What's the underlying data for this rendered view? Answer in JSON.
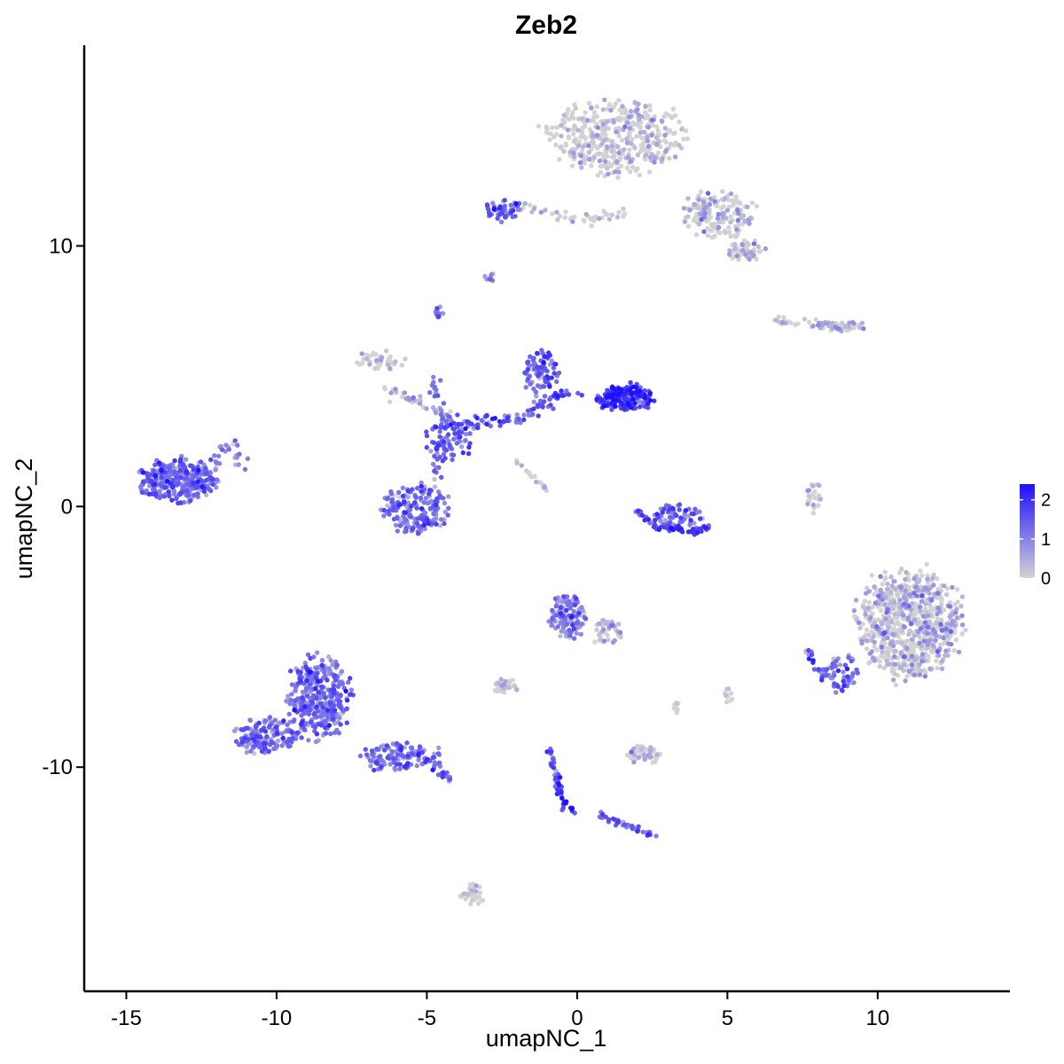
{
  "chart_data": {
    "type": "scatter",
    "title": "Zeb2",
    "xlabel": "umapNC_1",
    "ylabel": "umapNC_2",
    "xlim": [
      -16.4,
      14.4
    ],
    "ylim": [
      -18.6,
      17.7
    ],
    "x_ticks": [
      -15,
      -10,
      -5,
      0,
      5,
      10
    ],
    "x_tick_labels": [
      "-15",
      "-10",
      "-5",
      "0",
      "5",
      "10"
    ],
    "y_ticks": [
      -10,
      0,
      10
    ],
    "y_tick_labels": [
      "-10",
      "0",
      "10"
    ],
    "grid": false,
    "legend_position": "right",
    "color_scale": {
      "low_color": "#d3d3d3",
      "high_color": "#1e0fff",
      "min": 0,
      "max": 2.4,
      "ticks": [
        0,
        1,
        2
      ],
      "tick_labels": [
        "0",
        "1",
        "2"
      ]
    },
    "clusters": [
      {
        "cx": 1.2,
        "cy": 14.2,
        "rx": 2.5,
        "ry": 1.6,
        "n": 420,
        "expr": 0.15
      },
      {
        "cx": 4.7,
        "cy": 11.2,
        "rx": 1.3,
        "ry": 1.0,
        "n": 160,
        "expr": 0.3
      },
      {
        "cx": 5.6,
        "cy": 9.8,
        "rx": 0.7,
        "ry": 0.5,
        "n": 60,
        "expr": 0.2
      },
      {
        "cx": -2.4,
        "cy": 11.4,
        "rx": 0.7,
        "ry": 0.5,
        "n": 50,
        "expr": 1.3
      },
      {
        "cx": -2.9,
        "cy": 8.8,
        "rx": 0.2,
        "ry": 0.2,
        "n": 8,
        "expr": 1.3
      },
      {
        "cx": -4.6,
        "cy": 7.4,
        "rx": 0.2,
        "ry": 0.3,
        "n": 10,
        "expr": 1.2
      },
      {
        "cx": -6.6,
        "cy": 5.6,
        "rx": 0.9,
        "ry": 0.5,
        "n": 40,
        "expr": 0.1
      },
      {
        "cx": -13.3,
        "cy": 1.0,
        "rx": 1.4,
        "ry": 0.9,
        "n": 340,
        "expr": 1.2
      },
      {
        "cx": -5.4,
        "cy": -0.1,
        "rx": 1.2,
        "ry": 1.1,
        "n": 180,
        "expr": 1.2
      },
      {
        "cx": -4.2,
        "cy": 2.6,
        "rx": 0.9,
        "ry": 1.0,
        "n": 80,
        "expr": 1.3
      },
      {
        "cx": -1.2,
        "cy": 5.2,
        "rx": 0.7,
        "ry": 0.9,
        "n": 80,
        "expr": 1.4
      },
      {
        "cx": 1.6,
        "cy": 4.2,
        "rx": 1.0,
        "ry": 0.6,
        "n": 180,
        "expr": 1.8
      },
      {
        "cx": 3.3,
        "cy": -0.4,
        "rx": 0.9,
        "ry": 0.6,
        "n": 60,
        "expr": 1.3
      },
      {
        "cx": 8.6,
        "cy": 6.9,
        "rx": 1.0,
        "ry": 0.2,
        "n": 30,
        "expr": 0.5
      },
      {
        "cx": 11.1,
        "cy": -4.5,
        "rx": 1.9,
        "ry": 2.4,
        "n": 720,
        "expr": 0.45
      },
      {
        "cx": 8.9,
        "cy": -6.3,
        "rx": 0.6,
        "ry": 0.7,
        "n": 40,
        "expr": 1.0
      },
      {
        "cx": -10.3,
        "cy": -8.8,
        "rx": 1.2,
        "ry": 0.8,
        "n": 150,
        "expr": 1.1
      },
      {
        "cx": -8.6,
        "cy": -7.3,
        "rx": 1.2,
        "ry": 1.7,
        "n": 360,
        "expr": 1.1
      },
      {
        "cx": -6.0,
        "cy": -9.6,
        "rx": 1.6,
        "ry": 0.6,
        "n": 120,
        "expr": 1.1
      },
      {
        "cx": -0.3,
        "cy": -4.2,
        "rx": 0.7,
        "ry": 0.9,
        "n": 130,
        "expr": 0.9
      },
      {
        "cx": 1.0,
        "cy": -4.8,
        "rx": 0.6,
        "ry": 0.6,
        "n": 40,
        "expr": 0.4
      },
      {
        "cx": -2.4,
        "cy": -6.9,
        "rx": 0.5,
        "ry": 0.3,
        "n": 30,
        "expr": 0.1
      },
      {
        "cx": 2.2,
        "cy": -9.5,
        "rx": 0.6,
        "ry": 0.4,
        "n": 60,
        "expr": 0.05
      },
      {
        "cx": 7.9,
        "cy": 0.4,
        "rx": 0.3,
        "ry": 0.7,
        "n": 25,
        "expr": 0.1
      },
      {
        "cx": -3.5,
        "cy": -14.9,
        "rx": 0.4,
        "ry": 0.5,
        "n": 35,
        "expr": 0.1
      },
      {
        "cx": 5.0,
        "cy": -7.3,
        "rx": 0.2,
        "ry": 0.4,
        "n": 12,
        "expr": 0.4
      },
      {
        "cx": 3.3,
        "cy": -7.7,
        "rx": 0.1,
        "ry": 0.3,
        "n": 8,
        "expr": 0.2
      }
    ],
    "trajectories": [
      {
        "points": [
          [
            -3.8,
            3.2
          ],
          [
            -2.0,
            3.3
          ],
          [
            -0.6,
            4.3
          ],
          [
            0.6,
            4.1
          ]
        ],
        "n": 90,
        "spread": 0.25,
        "expr": 1.4
      },
      {
        "points": [
          [
            -4.8,
            5.0
          ],
          [
            -4.3,
            3.0
          ],
          [
            -4.7,
            1.2
          ]
        ],
        "n": 40,
        "spread": 0.2,
        "expr": 1.1
      },
      {
        "points": [
          [
            -6.3,
            4.6
          ],
          [
            -5.3,
            3.9
          ],
          [
            -4.3,
            3.4
          ]
        ],
        "n": 40,
        "spread": 0.25,
        "expr": 0.6
      },
      {
        "points": [
          [
            -2.1,
            1.8
          ],
          [
            -1.0,
            0.6
          ],
          [
            -1.4,
            1.2
          ]
        ],
        "n": 18,
        "spread": 0.1,
        "expr": 0.3
      },
      {
        "points": [
          [
            2.0,
            -0.2
          ],
          [
            2.7,
            -0.8
          ],
          [
            3.8,
            -1.0
          ],
          [
            4.4,
            -0.8
          ]
        ],
        "n": 60,
        "spread": 0.12,
        "expr": 1.5
      },
      {
        "points": [
          [
            -0.9,
            -9.3
          ],
          [
            -0.6,
            -10.8
          ],
          [
            -0.4,
            -11.6
          ],
          [
            -0.1,
            -11.6
          ]
        ],
        "n": 50,
        "spread": 0.12,
        "expr": 1.7
      },
      {
        "points": [
          [
            0.7,
            -11.8
          ],
          [
            1.6,
            -12.2
          ],
          [
            2.6,
            -12.6
          ]
        ],
        "n": 40,
        "spread": 0.12,
        "expr": 1.3
      },
      {
        "points": [
          [
            7.7,
            -5.5
          ],
          [
            8.8,
            -7.2
          ]
        ],
        "n": 30,
        "spread": 0.25,
        "expr": 1.3
      },
      {
        "points": [
          [
            -12.3,
            1.2
          ],
          [
            -11.6,
            2.5
          ],
          [
            -11.1,
            1.5
          ]
        ],
        "n": 30,
        "spread": 0.3,
        "expr": 1.0
      },
      {
        "points": [
          [
            6.5,
            7.1
          ],
          [
            9.5,
            6.9
          ]
        ],
        "n": 40,
        "spread": 0.15,
        "expr": 0.4
      },
      {
        "points": [
          [
            -1.8,
            11.5
          ],
          [
            0.0,
            11.0
          ],
          [
            1.6,
            11.3
          ]
        ],
        "n": 40,
        "spread": 0.2,
        "expr": 0.1
      },
      {
        "points": [
          [
            -5.3,
            -9.4
          ],
          [
            -4.2,
            -10.5
          ]
        ],
        "n": 30,
        "spread": 0.15,
        "expr": 1.2
      }
    ]
  }
}
